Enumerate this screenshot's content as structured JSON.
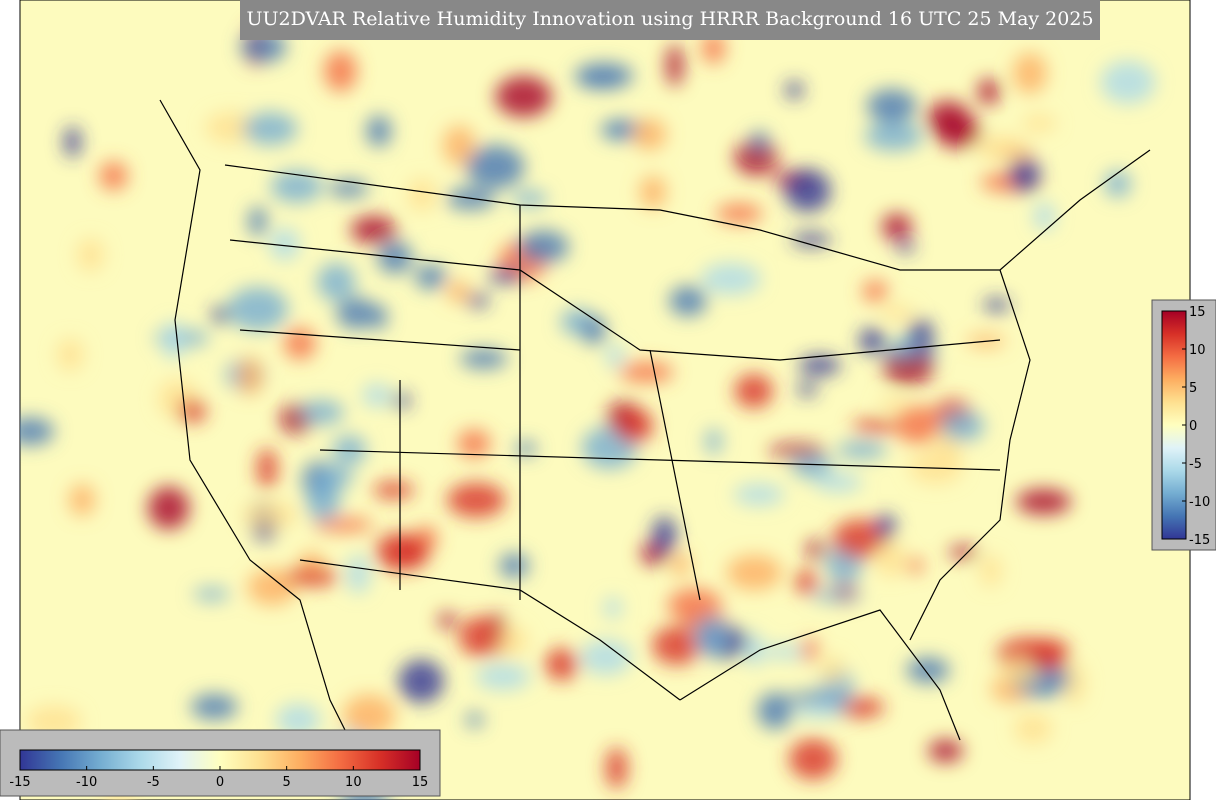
{
  "title": "UU2DVAR Relative Humidity Innovation using HRRR Background 16 UTC 25 May 2025",
  "colormap": [
    "#313695",
    "#4575b4",
    "#74add1",
    "#abd9e9",
    "#e0f3f8",
    "#ffffbf",
    "#fee090",
    "#fdae61",
    "#f46d43",
    "#d73027",
    "#a50026"
  ],
  "colorbars": [
    {
      "orientation": "vertical",
      "range": [
        -15,
        15
      ],
      "ticks": [
        15,
        10,
        5,
        0,
        -5,
        -10,
        -15
      ]
    },
    {
      "orientation": "horizontal",
      "range": [
        -15,
        15
      ],
      "ticks": [
        -15,
        -10,
        -5,
        0,
        5,
        10,
        15
      ]
    }
  ]
}
